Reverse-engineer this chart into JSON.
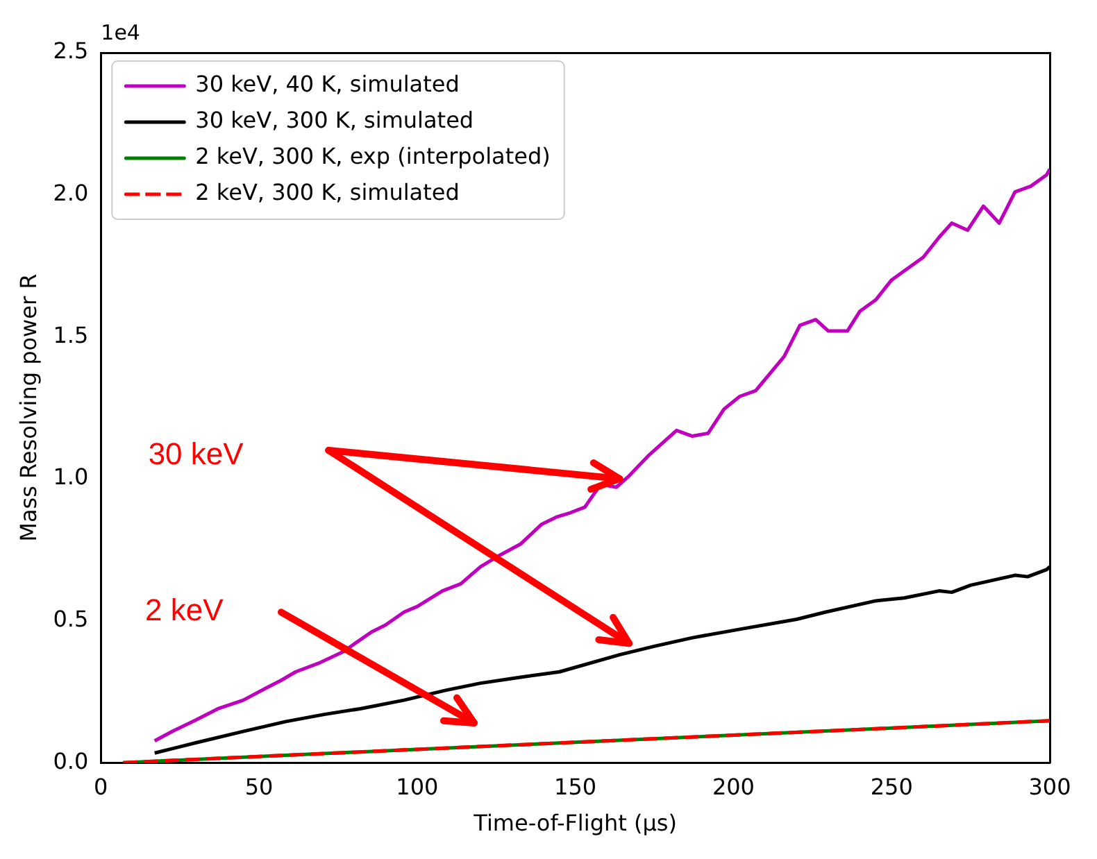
{
  "chart_data": {
    "type": "line",
    "xlabel": "Time-of-Flight (µs)",
    "ylabel": "Mass Resolving power R",
    "xlim": [
      0,
      300
    ],
    "xticks": [
      0,
      50,
      100,
      150,
      200,
      250,
      300
    ],
    "ylim": [
      0,
      2.5
    ],
    "yticks": [
      {
        "value": 0,
        "label": "0.0"
      },
      0.5,
      {
        "value": 1,
        "label": "1.0"
      },
      1.5,
      {
        "value": 2,
        "label": "2.0"
      },
      2.5
    ],
    "grid": false,
    "legend": "top left",
    "marker": "none",
    "annotations": [
      "1e4",
      "30 keV",
      "2 keV"
    ],
    "series": [
      {
        "name": "30 keV, 40 K, simulated",
        "color": "#bf00bf",
        "line_style": "solid",
        "x": [
          17,
          22.5,
          30,
          37,
          45,
          52.6,
          57,
          61.6,
          68.8,
          76.5,
          85.5,
          90,
          95.8,
          100,
          108,
          113.8,
          120,
          126,
          132.7,
          139.4,
          144,
          148.4,
          153,
          158,
          163,
          167,
          173,
          182,
          187,
          192,
          197,
          202,
          207,
          216,
          221,
          226,
          230,
          236,
          240,
          245,
          250,
          260,
          265,
          269,
          274,
          279,
          284,
          289,
          294,
          299,
          300
        ],
        "values": [
          0.077,
          0.11,
          0.15,
          0.19,
          0.22,
          0.265,
          0.29,
          0.32,
          0.35,
          0.39,
          0.46,
          0.485,
          0.53,
          0.55,
          0.605,
          0.63,
          0.69,
          0.73,
          0.77,
          0.84,
          0.865,
          0.88,
          0.9,
          0.98,
          0.97,
          1.01,
          1.08,
          1.17,
          1.15,
          1.16,
          1.245,
          1.29,
          1.31,
          1.43,
          1.54,
          1.56,
          1.52,
          1.52,
          1.59,
          1.63,
          1.7,
          1.78,
          1.85,
          1.9,
          1.875,
          1.96,
          1.9,
          2.01,
          2.03,
          2.07,
          2.09
        ]
      },
      {
        "name": "30 keV, 300 K, simulated",
        "color": "#000000",
        "line_style": "solid",
        "x": [
          17,
          30,
          45,
          58.5,
          70.6,
          82,
          95.8,
          109,
          120,
          132,
          145,
          164,
          175,
          187,
          202,
          220,
          229,
          245,
          254,
          265,
          269,
          275,
          289,
          293,
          299,
          300
        ],
        "values": [
          0.034,
          0.07,
          0.11,
          0.145,
          0.17,
          0.19,
          0.22,
          0.255,
          0.28,
          0.3,
          0.32,
          0.38,
          0.41,
          0.44,
          0.47,
          0.505,
          0.53,
          0.57,
          0.58,
          0.605,
          0.6,
          0.625,
          0.66,
          0.655,
          0.68,
          0.69
        ]
      },
      {
        "name": "2 keV, 300 K, exp (interpolated)",
        "color": "#008000",
        "line_style": "solid",
        "x": [
          7,
          50,
          100,
          150,
          200,
          250,
          300
        ],
        "values": [
          0,
          0.022,
          0.047,
          0.072,
          0.097,
          0.122,
          0.148
        ]
      },
      {
        "name": "2 keV, 300 K, simulated",
        "color": "#ff0000",
        "line_style": "dashed",
        "x": [
          7,
          50,
          100,
          150,
          200,
          250,
          300
        ],
        "values": [
          0,
          0.022,
          0.047,
          0.072,
          0.097,
          0.122,
          0.148
        ]
      }
    ]
  }
}
